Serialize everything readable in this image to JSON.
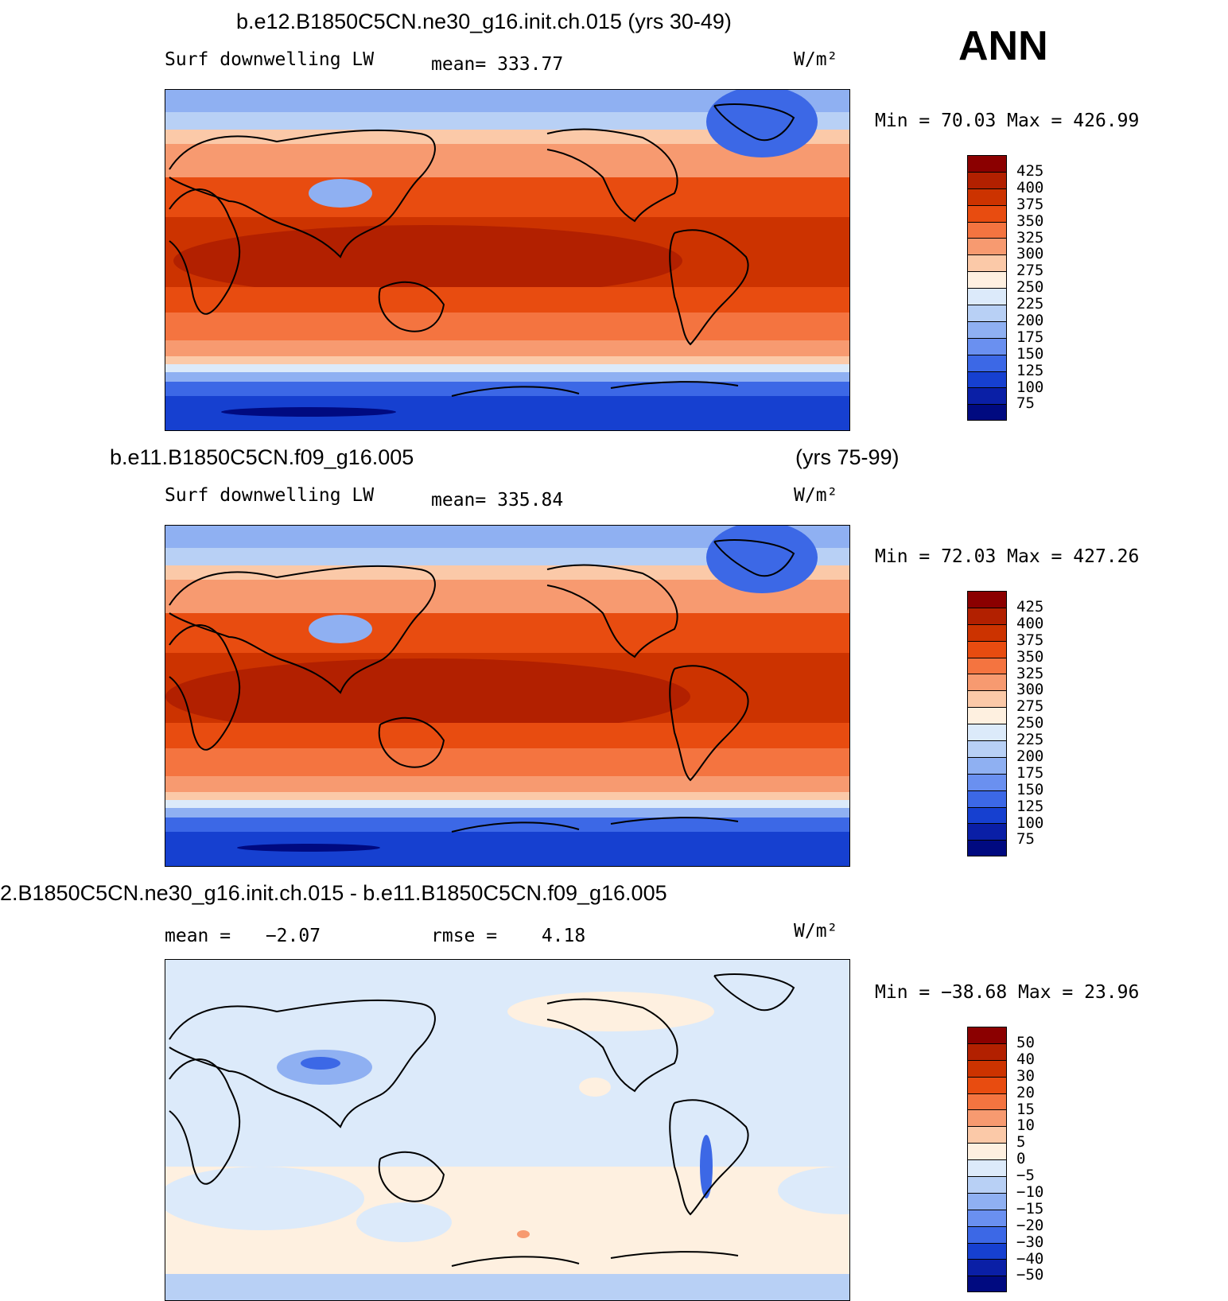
{
  "season": "ANN",
  "panels": [
    {
      "title": "b.e12.B1850C5CN.ne30_g16.init.ch.015 (yrs 30-49)",
      "title_right": "",
      "var_label": "Surf downwelling LW",
      "stat_label": "mean=",
      "stat_value": "333.77",
      "units": "W/m²",
      "minmax": "Min =   70.03 Max =  426.99"
    },
    {
      "title": "b.e11.B1850C5CN.f09_g16.005",
      "title_right": "(yrs 75-99)",
      "var_label": "Surf downwelling LW",
      "stat_label": "mean=",
      "stat_value": "335.84",
      "units": "W/m²",
      "minmax": "Min =   72.03 Max =  427.26"
    },
    {
      "title": "2.B1850C5CN.ne30_g16.init.ch.015 - b.e11.B1850C5CN.f09_g16.005",
      "title_right": "",
      "var_label": "mean =",
      "var_value": "−2.07",
      "stat_label": "rmse =",
      "stat_value": "4.18",
      "units": "W/m²",
      "minmax": "Min = −38.68 Max =   23.96"
    }
  ],
  "colorbars": {
    "absolute": {
      "levels": [
        "425",
        "400",
        "375",
        "350",
        "325",
        "300",
        "275",
        "250",
        "225",
        "200",
        "175",
        "150",
        "125",
        "100",
        "75"
      ],
      "colors": [
        "#8b0000",
        "#b22000",
        "#cc3300",
        "#e84c10",
        "#f47440",
        "#f79a70",
        "#fbc9a8",
        "#fef0e0",
        "#dceafa",
        "#b8d0f5",
        "#8fb0f2",
        "#6a90f0",
        "#3c68e6",
        "#1640d0",
        "#0a1fa6",
        "#000a80"
      ]
    },
    "difference": {
      "levels": [
        "50",
        "40",
        "30",
        "20",
        "15",
        "10",
        "5",
        "0",
        "−5",
        "−10",
        "−15",
        "−20",
        "−30",
        "−40",
        "−50"
      ],
      "colors": [
        "#8b0000",
        "#b22000",
        "#cc3300",
        "#e84c10",
        "#f47440",
        "#f79a70",
        "#fbc9a8",
        "#fef0e0",
        "#dceafa",
        "#b8d0f5",
        "#8fb0f2",
        "#6a90f0",
        "#3c68e6",
        "#1640d0",
        "#0a1fa6",
        "#000a80"
      ]
    }
  }
}
